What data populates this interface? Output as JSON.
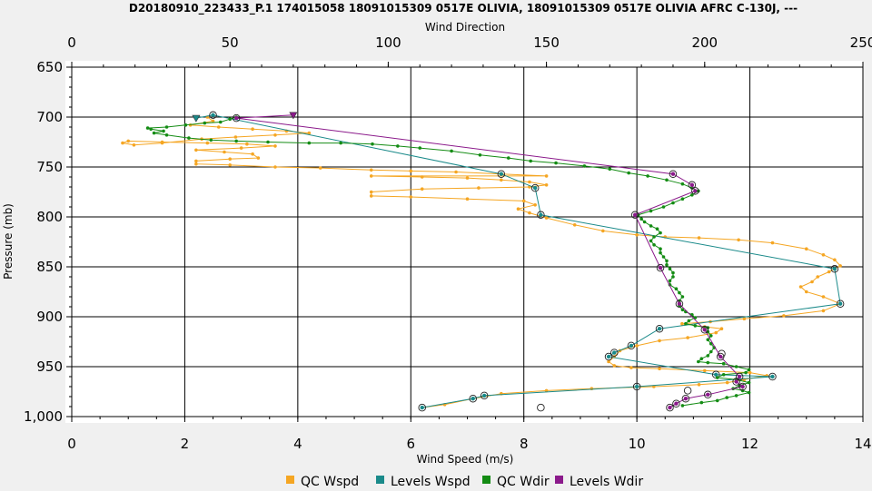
{
  "chart_data": {
    "type": "line",
    "title": "D20180910_223433_P.1 174015058 18091015309 0517E OLIVIA, 18091015309 0517E OLIVIA AFRC C-130J, ---",
    "top_axis": {
      "label": "Wind Direction",
      "range": [
        0,
        250
      ],
      "ticks": [
        0,
        50,
        100,
        150,
        200,
        250
      ],
      "tick_labels": [
        "0",
        "50",
        "100",
        "150",
        "200",
        "250"
      ]
    },
    "bottom_axis": {
      "label": "Wind Speed (m/s)",
      "range": [
        0,
        14
      ],
      "ticks": [
        0,
        2,
        4,
        6,
        8,
        10,
        12,
        14
      ],
      "tick_labels": [
        "0",
        "2",
        "4",
        "6",
        "8",
        "10",
        "12",
        "14"
      ]
    },
    "left_axis": {
      "label": "Pressure (mb)",
      "range": [
        650,
        1000
      ],
      "inverted": true,
      "ticks": [
        650,
        700,
        750,
        800,
        850,
        900,
        950,
        1000
      ],
      "tick_labels": [
        "650",
        "700",
        "750",
        "800",
        "850",
        "900",
        "950",
        "1,000"
      ]
    },
    "grid": true,
    "legend_position": "bottom",
    "series": [
      {
        "name": "QC Wspd",
        "axis": "speed",
        "color": "#f5a623",
        "style": "line-points",
        "points": [
          [
            6.2,
            991
          ],
          [
            6.6,
            988
          ],
          [
            7.1,
            982
          ],
          [
            7.6,
            977
          ],
          [
            8.4,
            974
          ],
          [
            9.2,
            972
          ],
          [
            10.3,
            970
          ],
          [
            11.1,
            968
          ],
          [
            11.6,
            966
          ],
          [
            11.9,
            963
          ],
          [
            12.3,
            959
          ],
          [
            12.0,
            956
          ],
          [
            11.2,
            954
          ],
          [
            10.4,
            952
          ],
          [
            9.9,
            951
          ],
          [
            9.6,
            949
          ],
          [
            9.5,
            945
          ],
          [
            9.6,
            940
          ],
          [
            9.7,
            934
          ],
          [
            10.0,
            929
          ],
          [
            10.4,
            924
          ],
          [
            10.9,
            921
          ],
          [
            11.4,
            916
          ],
          [
            11.5,
            912
          ],
          [
            11.2,
            910
          ],
          [
            10.8,
            907
          ],
          [
            11.3,
            905
          ],
          [
            11.9,
            902
          ],
          [
            12.6,
            899
          ],
          [
            13.3,
            894
          ],
          [
            13.6,
            887
          ],
          [
            13.3,
            880
          ],
          [
            13.0,
            875
          ],
          [
            12.9,
            870
          ],
          [
            13.1,
            865
          ],
          [
            13.2,
            860
          ],
          [
            13.4,
            855
          ],
          [
            13.6,
            849
          ],
          [
            13.5,
            843
          ],
          [
            13.3,
            838
          ],
          [
            13.0,
            832
          ],
          [
            12.4,
            826
          ],
          [
            11.8,
            823
          ],
          [
            11.1,
            821
          ],
          [
            10.5,
            820
          ],
          [
            10.0,
            818
          ],
          [
            9.4,
            814
          ],
          [
            8.9,
            808
          ],
          [
            8.4,
            801
          ],
          [
            8.1,
            796
          ],
          [
            7.9,
            792
          ],
          [
            8.2,
            788
          ],
          [
            8.0,
            784
          ],
          [
            7.0,
            782
          ],
          [
            6.0,
            780
          ],
          [
            5.3,
            779
          ],
          [
            5.3,
            775
          ],
          [
            6.2,
            772
          ],
          [
            7.2,
            771
          ],
          [
            8.1,
            770
          ],
          [
            8.4,
            768
          ],
          [
            8.1,
            765
          ],
          [
            7.6,
            763
          ],
          [
            7.0,
            761
          ],
          [
            6.2,
            760
          ],
          [
            5.3,
            759
          ],
          [
            8.4,
            759
          ],
          [
            7.6,
            757
          ],
          [
            6.8,
            755
          ],
          [
            6.0,
            754
          ],
          [
            5.3,
            753
          ],
          [
            4.4,
            751
          ],
          [
            3.6,
            750
          ],
          [
            2.8,
            748
          ],
          [
            2.2,
            747
          ],
          [
            2.2,
            744
          ],
          [
            2.8,
            742
          ],
          [
            3.3,
            741
          ],
          [
            3.2,
            737
          ],
          [
            2.7,
            735
          ],
          [
            2.2,
            733
          ],
          [
            3.0,
            731
          ],
          [
            3.6,
            729
          ],
          [
            3.1,
            727
          ],
          [
            2.4,
            726
          ],
          [
            1.6,
            725
          ],
          [
            1.0,
            724
          ],
          [
            0.9,
            726
          ],
          [
            1.1,
            728
          ],
          [
            1.6,
            726
          ],
          [
            2.3,
            722
          ],
          [
            2.9,
            720
          ],
          [
            3.6,
            718
          ],
          [
            4.2,
            716
          ],
          [
            3.8,
            714
          ],
          [
            3.2,
            712
          ],
          [
            2.6,
            710
          ],
          [
            2.1,
            708
          ],
          [
            2.5,
            704
          ],
          [
            2.4,
            700
          ]
        ]
      },
      {
        "name": "Levels Wspd",
        "axis": "speed",
        "color": "#1a8a8a",
        "style": "line-markers",
        "points": [
          [
            6.2,
            991
          ],
          [
            7.1,
            982
          ],
          [
            7.3,
            979
          ],
          [
            10.0,
            970
          ],
          [
            12.4,
            960
          ],
          [
            11.4,
            958
          ],
          [
            9.5,
            940
          ],
          [
            9.6,
            936
          ],
          [
            9.9,
            929
          ],
          [
            10.4,
            912
          ],
          [
            13.6,
            887
          ],
          [
            13.5,
            852
          ],
          [
            8.3,
            798
          ],
          [
            8.2,
            771
          ],
          [
            7.6,
            757
          ],
          [
            2.5,
            698
          ],
          [
            2.2,
            701
          ]
        ],
        "loose_points": [
          [
            8.3,
            991
          ],
          [
            10.9,
            974
          ],
          [
            11.5,
            937
          ]
        ]
      },
      {
        "name": "QC Wdir",
        "axis": "direction",
        "color": "#148c14",
        "style": "line-points",
        "points": [
          [
            193,
            989
          ],
          [
            199,
            986
          ],
          [
            204,
            984
          ],
          [
            207,
            981
          ],
          [
            210,
            979
          ],
          [
            214,
            976
          ],
          [
            212,
            974
          ],
          [
            209,
            972
          ],
          [
            211,
            969
          ],
          [
            214,
            966
          ],
          [
            210,
            963
          ],
          [
            204,
            961
          ],
          [
            206,
            958
          ],
          [
            213,
            956
          ],
          [
            214,
            953
          ],
          [
            210,
            950
          ],
          [
            206,
            947
          ],
          [
            201,
            946
          ],
          [
            198,
            945
          ],
          [
            199,
            942
          ],
          [
            201,
            939
          ],
          [
            202,
            935
          ],
          [
            203,
            931
          ],
          [
            202,
            927
          ],
          [
            201,
            923
          ],
          [
            202,
            919
          ],
          [
            201,
            915
          ],
          [
            201,
            911
          ],
          [
            197,
            909
          ],
          [
            194,
            907
          ],
          [
            195,
            904
          ],
          [
            197,
            901
          ],
          [
            196,
            898
          ],
          [
            194,
            895
          ],
          [
            193,
            893
          ],
          [
            192,
            889
          ],
          [
            192,
            884
          ],
          [
            193,
            880
          ],
          [
            192,
            876
          ],
          [
            191,
            872
          ],
          [
            189,
            868
          ],
          [
            189,
            864
          ],
          [
            190,
            860
          ],
          [
            190,
            856
          ],
          [
            189,
            852
          ],
          [
            188,
            848
          ],
          [
            188,
            844
          ],
          [
            187,
            840
          ],
          [
            186,
            836
          ],
          [
            186,
            832
          ],
          [
            184,
            828
          ],
          [
            183,
            824
          ],
          [
            184,
            820
          ],
          [
            186,
            816
          ],
          [
            185,
            812
          ],
          [
            183,
            809
          ],
          [
            181,
            805
          ],
          [
            180,
            802
          ],
          [
            179,
            798
          ],
          [
            183,
            794
          ],
          [
            187,
            790
          ],
          [
            190,
            786
          ],
          [
            193,
            782
          ],
          [
            196,
            778
          ],
          [
            198,
            774
          ],
          [
            196,
            771
          ],
          [
            193,
            767
          ],
          [
            188,
            763
          ],
          [
            182,
            759
          ],
          [
            176,
            756
          ],
          [
            170,
            752
          ],
          [
            162,
            749
          ],
          [
            153,
            746
          ],
          [
            145,
            744
          ],
          [
            138,
            741
          ],
          [
            129,
            738
          ],
          [
            120,
            734
          ],
          [
            110,
            731
          ],
          [
            103,
            729
          ],
          [
            95,
            727
          ],
          [
            85,
            726
          ],
          [
            75,
            726
          ],
          [
            62,
            725
          ],
          [
            52,
            724
          ],
          [
            44,
            723
          ],
          [
            37,
            721
          ],
          [
            30,
            718
          ],
          [
            26,
            716
          ],
          [
            29,
            714
          ],
          [
            25,
            712
          ],
          [
            24,
            711
          ],
          [
            30,
            710
          ],
          [
            36,
            708
          ],
          [
            42,
            706
          ],
          [
            47,
            705
          ],
          [
            50,
            702
          ],
          [
            52,
            700
          ]
        ]
      },
      {
        "name": "Levels Wdir",
        "axis": "direction",
        "color": "#8b1a8b",
        "style": "line-markers",
        "points": [
          [
            189,
            991
          ],
          [
            191,
            987
          ],
          [
            194,
            982
          ],
          [
            201,
            978
          ],
          [
            212,
            970
          ],
          [
            210,
            965
          ],
          [
            211,
            960
          ],
          [
            205,
            940
          ],
          [
            200,
            913
          ],
          [
            192,
            887
          ],
          [
            186,
            851
          ],
          [
            178,
            798
          ],
          [
            197,
            774
          ],
          [
            196,
            768
          ],
          [
            190,
            757
          ],
          [
            52,
            701
          ],
          [
            70,
            698
          ]
        ]
      }
    ]
  }
}
